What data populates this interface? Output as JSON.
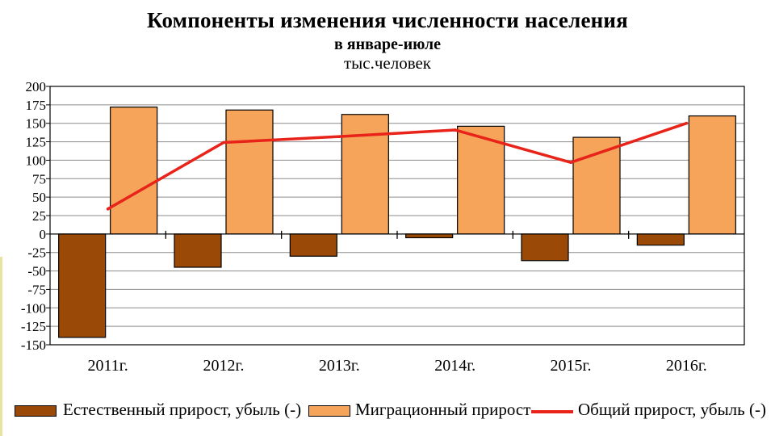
{
  "title": "Компоненты изменения численности населения",
  "subtitle": "в январе-июле",
  "unit": "тыс.человек",
  "colors": {
    "natural": "#9a4a06",
    "migration": "#f5a45a",
    "total": "#e8231a",
    "plot_bg": "#ffffff",
    "grid": "#8c8c8c"
  },
  "legend": {
    "natural_label": "Естественный прирост, убыль (-)",
    "migration_label": "Миграционный прирост",
    "total_label": "Общий прирост, убыль (-)"
  },
  "chart_data": {
    "type": "bar",
    "categories": [
      "2011г.",
      "2012г.",
      "2013г.",
      "2014г.",
      "2015г.",
      "2016г."
    ],
    "series": [
      {
        "name": "Естественный прирост, убыль (-)",
        "type": "bar",
        "values": [
          -140,
          -45,
          -30,
          -5,
          -36,
          -15
        ]
      },
      {
        "name": "Миграционный прирост",
        "type": "bar",
        "values": [
          172,
          168,
          162,
          146,
          131,
          160
        ]
      },
      {
        "name": "Общий прирост, убыль (-)",
        "type": "line",
        "values": [
          34,
          124,
          132,
          141,
          97,
          150
        ]
      }
    ],
    "ylim": [
      -150,
      200
    ],
    "yticks": [
      200,
      175,
      150,
      125,
      100,
      75,
      50,
      25,
      0,
      -25,
      -50,
      -75,
      -100,
      -125,
      -150
    ],
    "ytick_labels": [
      "200",
      "175",
      "150",
      "125",
      "100",
      "75",
      "50",
      "25",
      "0",
      "-25",
      "-50",
      "-75",
      "-100",
      "-125",
      "-150"
    ],
    "grid": true,
    "legend_position": "bottom"
  }
}
